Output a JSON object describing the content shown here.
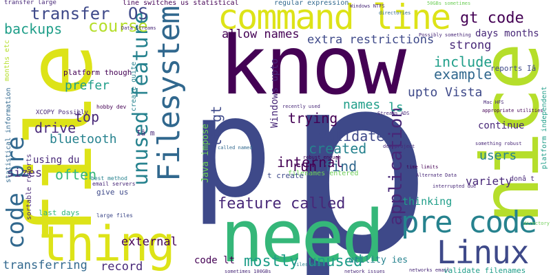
{
  "palette": {
    "purple_dark": "#440154",
    "purple": "#482878",
    "indigo": "#3e4989",
    "blue": "#31688e",
    "teal": "#26828e",
    "teal_green": "#1f9e89",
    "green": "#35b779",
    "light_green": "#6ece58",
    "yellow_green": "#b5de2b",
    "yellow": "#dde318"
  },
  "words": [
    {
      "text": "p",
      "color": "indigo"
    },
    {
      "text": "know",
      "color": "purple_dark"
    },
    {
      "text": "need",
      "color": "green"
    },
    {
      "text": "file",
      "color": "yellow"
    },
    {
      "text": "p",
      "color": "indigo"
    },
    {
      "text": "nice",
      "color": "yellow_green"
    },
    {
      "text": "thing",
      "color": "yellow"
    },
    {
      "text": "command line",
      "color": "yellow"
    },
    {
      "text": "Filesystem",
      "color": "blue"
    },
    {
      "text": "Linux",
      "color": "indigo"
    },
    {
      "text": "pre code",
      "color": "teal"
    },
    {
      "text": "code pre",
      "color": "blue"
    },
    {
      "text": "unused feature",
      "color": "teal"
    },
    {
      "text": "feature called",
      "color": "purple"
    },
    {
      "text": "mostly unused",
      "color": "teal_green"
    },
    {
      "text": "application",
      "color": "purple"
    },
    {
      "text": "transfer",
      "color": "indigo"
    },
    {
      "text": "OS",
      "color": "indigo"
    },
    {
      "text": "backups",
      "color": "teal_green"
    },
    {
      "text": "course",
      "color": "yellow_green"
    },
    {
      "text": "gt code",
      "color": "purple_dark"
    },
    {
      "text": "days months",
      "color": "purple"
    },
    {
      "text": "strong",
      "color": "purple"
    },
    {
      "text": "include",
      "color": "teal_green"
    },
    {
      "text": "example",
      "color": "blue"
    },
    {
      "text": "upto Vista",
      "color": "indigo"
    },
    {
      "text": "allow names",
      "color": "purple_dark"
    },
    {
      "text": "extra restrictions",
      "color": "indigo"
    },
    {
      "text": "trying",
      "color": "purple_dark"
    },
    {
      "text": "validate",
      "color": "indigo"
    },
    {
      "text": "created",
      "color": "teal"
    },
    {
      "text": "internal",
      "color": "purple_dark"
    },
    {
      "text": "run",
      "color": "purple_dark"
    },
    {
      "text": "find",
      "color": "blue"
    },
    {
      "text": "names",
      "color": "teal_green"
    },
    {
      "text": "ls",
      "color": "teal_green"
    },
    {
      "text": "lt gt",
      "color": "indigo"
    },
    {
      "text": "Windows upto",
      "color": "purple"
    },
    {
      "text": "Java impose",
      "color": "light_green"
    },
    {
      "text": "prefer",
      "color": "teal_green"
    },
    {
      "text": "drive",
      "color": "purple"
    },
    {
      "text": "top",
      "color": "purple"
    },
    {
      "text": "bluetooth",
      "color": "teal"
    },
    {
      "text": "often",
      "color": "green"
    },
    {
      "text": "using du",
      "color": "purple"
    },
    {
      "text": "sizes",
      "color": "purple"
    },
    {
      "text": "external",
      "color": "purple_dark"
    },
    {
      "text": "record",
      "color": "purple"
    },
    {
      "text": "transferring",
      "color": "blue"
    },
    {
      "text": "code lt",
      "color": "purple_dark"
    },
    {
      "text": "variety",
      "color": "purple"
    },
    {
      "text": "continue",
      "color": "purple"
    },
    {
      "text": "users",
      "color": "teal"
    },
    {
      "text": "thinking",
      "color": "teal_green"
    },
    {
      "text": "utility ies",
      "color": "teal"
    },
    {
      "text": "validate filenames",
      "color": "teal_green"
    },
    {
      "text": "reports Iâ",
      "color": "indigo"
    },
    {
      "text": "platform though",
      "color": "purple_dark"
    },
    {
      "text": "Iâ m",
      "color": "purple"
    },
    {
      "text": "give us",
      "color": "indigo"
    },
    {
      "text": "last days",
      "color": "green"
    },
    {
      "text": "platform independent",
      "color": "teal_green"
    },
    {
      "text": "donâ t",
      "color": "purple"
    },
    {
      "text": "line switches us statistical",
      "color": "purple_dark"
    },
    {
      "text": "regular expression",
      "color": "blue"
    },
    {
      "text": "create quite",
      "color": "teal"
    },
    {
      "text": "months etc",
      "color": "yellow_green"
    },
    {
      "text": "statistical information",
      "color": "blue"
    },
    {
      "text": "sortable reports",
      "color": "purple"
    },
    {
      "text": "transfer large",
      "color": "purple"
    },
    {
      "text": "XCOPY Possibly",
      "color": "purple"
    },
    {
      "text": "hobby dev",
      "color": "purple_dark"
    },
    {
      "text": "best method",
      "color": "teal"
    },
    {
      "text": "email servers",
      "color": "purple"
    },
    {
      "text": "large files",
      "color": "indigo"
    },
    {
      "text": "Windows NTFS",
      "color": "purple"
    },
    {
      "text": "Data Streams",
      "color": "purple"
    },
    {
      "text": "directories",
      "color": "blue"
    },
    {
      "text": "Possibly something",
      "color": "purple"
    },
    {
      "text": "Mac HFS",
      "color": "purple"
    },
    {
      "text": "appropriate utilities",
      "color": "purple_dark"
    },
    {
      "text": "something robust",
      "color": "purple"
    },
    {
      "text": "time limits",
      "color": "purple_dark"
    },
    {
      "text": "interrupted due",
      "color": "purple"
    },
    {
      "text": "network issues",
      "color": "purple"
    },
    {
      "text": "networks email",
      "color": "purple"
    },
    {
      "text": "sometimes 100GBs",
      "color": "purple"
    },
    {
      "text": "files 50GBs",
      "color": "teal"
    },
    {
      "text": "recently used",
      "color": "purple"
    },
    {
      "text": "robust enough",
      "color": "purple_dark"
    },
    {
      "text": "dev project",
      "color": "purple"
    },
    {
      "text": "Streams ADS",
      "color": "purple"
    },
    {
      "text": "filenames entered",
      "color": "light_green"
    },
    {
      "text": "t create",
      "color": "indigo"
    },
    {
      "text": "called named",
      "color": "blue"
    },
    {
      "text": "Alternate Data",
      "color": "purple"
    },
    {
      "text": "directory",
      "color": "light_green"
    },
    {
      "text": "50GBs sometimes",
      "color": "light_green"
    }
  ]
}
